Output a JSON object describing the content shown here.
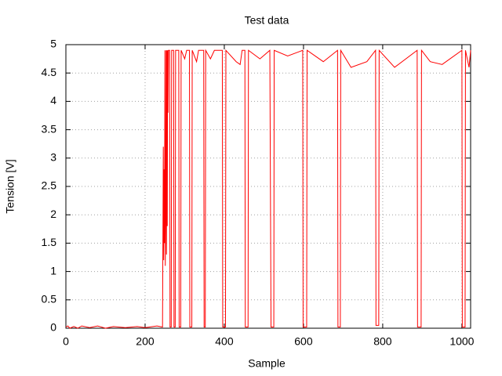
{
  "chart_data": {
    "type": "line",
    "title": "Test data",
    "x_label": "Sample",
    "y_label": "Tension [V]",
    "color": "#ff0000",
    "grid": true,
    "xlim": [
      0,
      1022
    ],
    "ylim": [
      0,
      5
    ],
    "xticks": [
      0,
      200,
      400,
      600,
      800,
      1000
    ],
    "yticks": [
      0,
      0.5,
      1,
      1.5,
      2,
      2.5,
      3,
      3.5,
      4,
      4.5,
      5
    ],
    "x": [
      0,
      5,
      10,
      20,
      30,
      40,
      60,
      80,
      100,
      120,
      150,
      180,
      200,
      230,
      244,
      246,
      247,
      248,
      249,
      250,
      251,
      252,
      253,
      254,
      255,
      256,
      257,
      258,
      259,
      262,
      263,
      266,
      267,
      272,
      273,
      276,
      277,
      285,
      286,
      290,
      291,
      300,
      305,
      312,
      313,
      318,
      319,
      330,
      335,
      348,
      349,
      352,
      353,
      365,
      375,
      395,
      396,
      403,
      404,
      430,
      440,
      445,
      452,
      453,
      460,
      461,
      490,
      515,
      518,
      525,
      526,
      560,
      598,
      599,
      608,
      609,
      650,
      686,
      687,
      693,
      694,
      720,
      760,
      782,
      783,
      790,
      791,
      830,
      887,
      888,
      897,
      898,
      920,
      950,
      1000,
      1001,
      1008,
      1009,
      1018,
      1022
    ],
    "values": [
      0.02,
      0.04,
      0,
      0.03,
      0,
      0.04,
      0.01,
      0.04,
      0,
      0.03,
      0.01,
      0.03,
      0.01,
      0.04,
      0.02,
      3.2,
      1.2,
      2.8,
      1.5,
      4.9,
      1.1,
      2,
      4.9,
      1.3,
      4.9,
      1.8,
      4.9,
      3.8,
      4.9,
      4.9,
      0.02,
      0.02,
      4.9,
      4.9,
      0.02,
      0.02,
      4.9,
      4.9,
      0.02,
      0.02,
      4.9,
      4.75,
      4.9,
      4.9,
      0.02,
      0.02,
      4.9,
      4.7,
      4.9,
      4.9,
      0.02,
      0.02,
      4.9,
      4.75,
      4.9,
      4.9,
      0.02,
      0.02,
      4.9,
      4.7,
      4.65,
      4.9,
      4.9,
      0.02,
      0.02,
      4.9,
      4.75,
      4.9,
      0.02,
      0.02,
      4.9,
      4.8,
      4.9,
      0.02,
      0.02,
      4.9,
      4.7,
      4.9,
      0.02,
      0.02,
      4.9,
      4.6,
      4.7,
      4.9,
      0.05,
      0.05,
      4.9,
      4.6,
      4.9,
      0.02,
      0.02,
      4.9,
      4.7,
      4.65,
      4.9,
      0.02,
      0.02,
      4.9,
      4.6,
      4.9
    ]
  }
}
